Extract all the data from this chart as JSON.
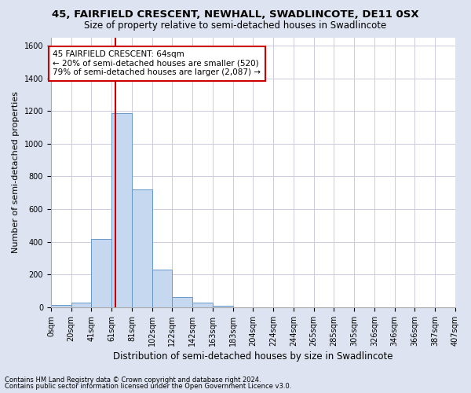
{
  "title_line1": "45, FAIRFIELD CRESCENT, NEWHALL, SWADLINCOTE, DE11 0SX",
  "title_line2": "Size of property relative to semi-detached houses in Swadlincote",
  "xlabel": "Distribution of semi-detached houses by size in Swadlincote",
  "ylabel": "Number of semi-detached properties",
  "footer_line1": "Contains HM Land Registry data © Crown copyright and database right 2024.",
  "footer_line2": "Contains public sector information licensed under the Open Government Licence v3.0.",
  "annotation_line1": "45 FAIRFIELD CRESCENT: 64sqm",
  "annotation_line2": "← 20% of semi-detached houses are smaller (520)",
  "annotation_line3": "79% of semi-detached houses are larger (2,087) →",
  "property_size": 64,
  "bin_width": 20,
  "bar_values": [
    12,
    30,
    420,
    1185,
    720,
    230,
    60,
    30,
    10,
    0,
    0,
    0,
    0,
    0,
    0,
    0,
    0,
    0,
    0,
    0
  ],
  "bar_color": "#c5d8f0",
  "bar_edge_color": "#6699cc",
  "red_line_color": "#cc0000",
  "annotation_box_color": "#cc0000",
  "outer_background_color": "#dde3f0",
  "plot_background_color": "#ffffff",
  "grid_color": "#ccccdd",
  "ylim": [
    0,
    1650
  ],
  "yticks": [
    0,
    200,
    400,
    600,
    800,
    1000,
    1200,
    1400,
    1600
  ],
  "x_tick_labels": [
    "0sqm",
    "20sqm",
    "41sqm",
    "61sqm",
    "81sqm",
    "102sqm",
    "122sqm",
    "142sqm",
    "163sqm",
    "183sqm",
    "204sqm",
    "224sqm",
    "244sqm",
    "265sqm",
    "285sqm",
    "305sqm",
    "326sqm",
    "346sqm",
    "366sqm",
    "387sqm",
    "407sqm"
  ],
  "title_fontsize": 9.5,
  "subtitle_fontsize": 8.5,
  "axis_label_fontsize": 8,
  "tick_fontsize": 7,
  "annotation_fontsize": 7.5,
  "footer_fontsize": 6
}
